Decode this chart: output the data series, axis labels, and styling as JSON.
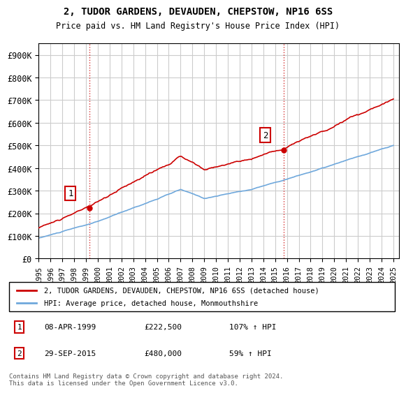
{
  "title": "2, TUDOR GARDENS, DEVAUDEN, CHEPSTOW, NP16 6SS",
  "subtitle": "Price paid vs. HM Land Registry's House Price Index (HPI)",
  "ylim": [
    0,
    950000
  ],
  "yticks": [
    0,
    100000,
    200000,
    300000,
    400000,
    500000,
    600000,
    700000,
    800000,
    900000
  ],
  "ytick_labels": [
    "£0",
    "£100K",
    "£200K",
    "£300K",
    "£400K",
    "£500K",
    "£600K",
    "£700K",
    "£800K",
    "£900K"
  ],
  "sale1_year": 1999.27,
  "sale1_price": 222500,
  "sale1_label": "1",
  "sale2_year": 2015.75,
  "sale2_price": 480000,
  "sale2_label": "2",
  "hpi_color": "#6fa8dc",
  "price_color": "#cc0000",
  "background_color": "#ffffff",
  "grid_color": "#cccccc",
  "legend_label_price": "2, TUDOR GARDENS, DEVAUDEN, CHEPSTOW, NP16 6SS (detached house)",
  "legend_label_hpi": "HPI: Average price, detached house, Monmouthshire",
  "footnote1": "Contains HM Land Registry data © Crown copyright and database right 2024.",
  "footnote2": "This data is licensed under the Open Government Licence v3.0.",
  "table_row1": [
    "1",
    "08-APR-1999",
    "£222,500",
    "107% ↑ HPI"
  ],
  "table_row2": [
    "2",
    "29-SEP-2015",
    "£480,000",
    "59% ↑ HPI"
  ]
}
